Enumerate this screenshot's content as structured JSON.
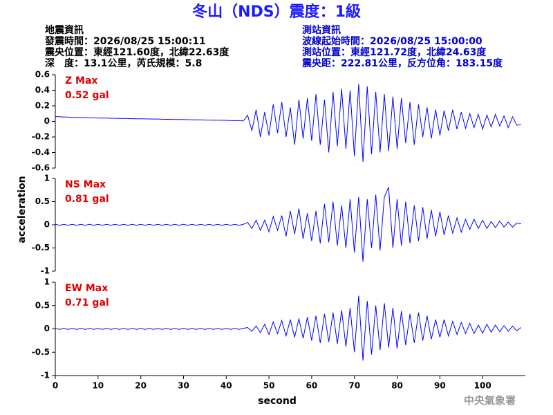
{
  "title": "冬山（NDS）震度：1級",
  "info_left": [
    "地震資訊",
    "發震時間：2026/08/25 15:00:11",
    "震央位置：東經121.60度，北緯22.63度",
    "深　度：13.1公里，芮氏規模：5.8"
  ],
  "info_right": [
    "測站資訊",
    "波線起始時間：2026/08/25 15:00:00",
    "測站位置：東經121.72度，北緯24.63度",
    "震央距：222.81公里，反方位角：183.15度"
  ],
  "ylabel": "acceleration",
  "xlabel": "second",
  "footer": "中央氣象署",
  "chart_data": [
    {
      "type": "line",
      "annotation": "Z Max",
      "annotation_value": "0.52 gal",
      "color": "#0000ff",
      "xlim": [
        0,
        110
      ],
      "xticks": [
        0,
        10,
        20,
        30,
        40,
        50,
        60,
        70,
        80,
        90,
        100
      ],
      "ylim": [
        -0.6,
        0.6
      ],
      "yticks": [
        -0.6,
        -0.4,
        -0.2,
        0,
        0.2,
        0.4,
        0.6
      ],
      "x": [
        0,
        1,
        2,
        3,
        4,
        5,
        6,
        7,
        8,
        9,
        10,
        11,
        12,
        13,
        14,
        15,
        16,
        17,
        18,
        19,
        20,
        21,
        22,
        23,
        24,
        25,
        26,
        27,
        28,
        29,
        30,
        31,
        32,
        33,
        34,
        35,
        36,
        37,
        38,
        39,
        40,
        41,
        42,
        43,
        44,
        45,
        46,
        47,
        48,
        49,
        50,
        51,
        52,
        53,
        54,
        55,
        56,
        57,
        58,
        59,
        60,
        61,
        62,
        63,
        64,
        65,
        66,
        67,
        68,
        69,
        70,
        71,
        72,
        73,
        74,
        75,
        76,
        77,
        78,
        79,
        80,
        81,
        82,
        83,
        84,
        85,
        86,
        87,
        88,
        89,
        90,
        91,
        92,
        93,
        94,
        95,
        96,
        97,
        98,
        99,
        100,
        101,
        102,
        103,
        104,
        105,
        106,
        107,
        108,
        109
      ],
      "values": [
        0.06,
        0.06,
        0.055,
        0.055,
        0.05,
        0.05,
        0.05,
        0.048,
        0.046,
        0.045,
        0.044,
        0.043,
        0.042,
        0.04,
        0.04,
        0.038,
        0.037,
        0.036,
        0.035,
        0.034,
        0.033,
        0.032,
        0.031,
        0.03,
        0.03,
        0.028,
        0.027,
        0.026,
        0.025,
        0.024,
        0.023,
        0.022,
        0.021,
        0.02,
        0.02,
        0.018,
        0.017,
        0.016,
        0.015,
        0.014,
        0.013,
        0.012,
        0.01,
        0.01,
        0.005,
        0.08,
        -0.12,
        0.15,
        -0.2,
        0.12,
        -0.18,
        0.22,
        -0.15,
        0.25,
        -0.2,
        0.18,
        -0.3,
        0.28,
        -0.22,
        0.3,
        -0.25,
        0.35,
        -0.3,
        0.28,
        -0.4,
        0.38,
        -0.32,
        0.42,
        -0.35,
        0.4,
        -0.45,
        0.48,
        -0.52,
        0.45,
        -0.42,
        0.38,
        -0.4,
        0.35,
        -0.38,
        0.32,
        -0.35,
        0.3,
        -0.28,
        0.25,
        -0.3,
        0.22,
        -0.2,
        0.18,
        -0.22,
        0.15,
        -0.18,
        0.14,
        -0.12,
        0.15,
        -0.1,
        0.12,
        -0.09,
        0.1,
        -0.08,
        0.09,
        -0.1,
        0.08,
        -0.07,
        0.09,
        -0.06,
        0.07,
        -0.08,
        0.06,
        -0.05,
        -0.04
      ]
    },
    {
      "type": "line",
      "annotation": "NS Max",
      "annotation_value": "0.81 gal",
      "color": "#0000ff",
      "xlim": [
        0,
        110
      ],
      "xticks": [
        0,
        10,
        20,
        30,
        40,
        50,
        60,
        70,
        80,
        90,
        100
      ],
      "ylim": [
        -1,
        1
      ],
      "yticks": [
        -1,
        -0.5,
        0,
        0.5,
        1
      ],
      "x": [
        0,
        1,
        2,
        3,
        4,
        5,
        6,
        7,
        8,
        9,
        10,
        11,
        12,
        13,
        14,
        15,
        16,
        17,
        18,
        19,
        20,
        21,
        22,
        23,
        24,
        25,
        26,
        27,
        28,
        29,
        30,
        31,
        32,
        33,
        34,
        35,
        36,
        37,
        38,
        39,
        40,
        41,
        42,
        43,
        44,
        45,
        46,
        47,
        48,
        49,
        50,
        51,
        52,
        53,
        54,
        55,
        56,
        57,
        58,
        59,
        60,
        61,
        62,
        63,
        64,
        65,
        66,
        67,
        68,
        69,
        70,
        71,
        72,
        73,
        74,
        75,
        76,
        77,
        78,
        79,
        80,
        81,
        82,
        83,
        84,
        85,
        86,
        87,
        88,
        89,
        90,
        91,
        92,
        93,
        94,
        95,
        96,
        97,
        98,
        99,
        100,
        101,
        102,
        103,
        104,
        105,
        106,
        107,
        108,
        109
      ],
      "values": [
        0.01,
        -0.01,
        0.01,
        -0.01,
        0.01,
        -0.01,
        0.01,
        -0.01,
        0.01,
        -0.01,
        0.01,
        -0.01,
        0.01,
        -0.01,
        0.01,
        -0.01,
        0.01,
        -0.01,
        0.01,
        -0.01,
        0.01,
        -0.01,
        0.01,
        -0.01,
        0.01,
        -0.01,
        0.01,
        -0.01,
        0.01,
        -0.01,
        0.01,
        -0.01,
        0.01,
        -0.01,
        0.01,
        -0.01,
        0.01,
        -0.01,
        0.01,
        -0.01,
        0.01,
        -0.01,
        0.01,
        -0.01,
        0.01,
        0.05,
        -0.08,
        0.1,
        -0.12,
        0.1,
        -0.15,
        0.18,
        -0.12,
        0.2,
        -0.25,
        0.3,
        -0.2,
        0.35,
        -0.3,
        0.25,
        -0.35,
        0.3,
        -0.4,
        0.45,
        -0.38,
        0.5,
        -0.45,
        0.42,
        -0.5,
        0.55,
        -0.6,
        0.6,
        -0.8,
        0.55,
        -0.5,
        0.65,
        -0.55,
        0.6,
        0.81,
        -0.5,
        0.55,
        -0.45,
        0.5,
        -0.4,
        0.42,
        -0.35,
        0.38,
        -0.3,
        0.32,
        -0.25,
        0.28,
        -0.22,
        0.2,
        -0.18,
        0.15,
        -0.16,
        0.12,
        -0.1,
        0.12,
        -0.08,
        0.1,
        -0.08,
        0.07,
        -0.06,
        0.08,
        -0.05,
        0.06,
        -0.05,
        0.04,
        0.02
      ]
    },
    {
      "type": "line",
      "annotation": "EW Max",
      "annotation_value": "0.71 gal",
      "color": "#0000ff",
      "xlim": [
        0,
        110
      ],
      "xticks": [
        0,
        10,
        20,
        30,
        40,
        50,
        60,
        70,
        80,
        90,
        100
      ],
      "ylim": [
        -1,
        1
      ],
      "yticks": [
        -1,
        -0.5,
        0,
        0.5,
        1
      ],
      "x": [
        0,
        1,
        2,
        3,
        4,
        5,
        6,
        7,
        8,
        9,
        10,
        11,
        12,
        13,
        14,
        15,
        16,
        17,
        18,
        19,
        20,
        21,
        22,
        23,
        24,
        25,
        26,
        27,
        28,
        29,
        30,
        31,
        32,
        33,
        34,
        35,
        36,
        37,
        38,
        39,
        40,
        41,
        42,
        43,
        44,
        45,
        46,
        47,
        48,
        49,
        50,
        51,
        52,
        53,
        54,
        55,
        56,
        57,
        58,
        59,
        60,
        61,
        62,
        63,
        64,
        65,
        66,
        67,
        68,
        69,
        70,
        71,
        72,
        73,
        74,
        75,
        76,
        77,
        78,
        79,
        80,
        81,
        82,
        83,
        84,
        85,
        86,
        87,
        88,
        89,
        90,
        91,
        92,
        93,
        94,
        95,
        96,
        97,
        98,
        99,
        100,
        101,
        102,
        103,
        104,
        105,
        106,
        107,
        108,
        109
      ],
      "values": [
        0.01,
        -0.01,
        0.01,
        -0.01,
        0.01,
        -0.01,
        0.01,
        -0.01,
        0.01,
        -0.01,
        0.01,
        -0.01,
        0.01,
        -0.01,
        0.01,
        -0.01,
        0.01,
        -0.01,
        0.01,
        -0.01,
        0.01,
        -0.01,
        0.01,
        -0.01,
        0.01,
        -0.01,
        0.01,
        -0.01,
        0.01,
        -0.01,
        0.01,
        -0.01,
        0.01,
        -0.01,
        0.01,
        -0.01,
        0.01,
        -0.01,
        0.01,
        -0.01,
        0.01,
        -0.01,
        0.01,
        -0.01,
        0.01,
        0.03,
        -0.05,
        0.06,
        -0.08,
        0.1,
        -0.12,
        0.15,
        -0.1,
        0.18,
        -0.15,
        0.2,
        -0.18,
        0.22,
        -0.2,
        0.25,
        -0.25,
        0.28,
        -0.3,
        0.32,
        -0.28,
        0.35,
        -0.32,
        0.4,
        -0.38,
        0.45,
        -0.5,
        0.71,
        -0.68,
        0.6,
        -0.55,
        0.5,
        -0.45,
        0.55,
        -0.4,
        0.45,
        -0.42,
        0.38,
        -0.35,
        0.32,
        -0.3,
        0.35,
        -0.25,
        0.28,
        -0.22,
        0.2,
        -0.18,
        0.2,
        -0.15,
        0.16,
        -0.12,
        0.14,
        -0.1,
        0.12,
        -0.1,
        0.08,
        -0.09,
        0.1,
        -0.07,
        0.08,
        -0.06,
        0.07,
        -0.05,
        0.06,
        -0.04,
        0.03
      ]
    }
  ]
}
